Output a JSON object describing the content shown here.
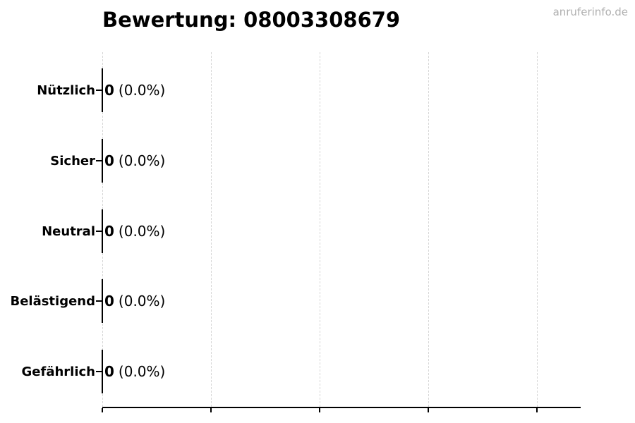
{
  "page": {
    "title": "Bewertung: 08003308679",
    "watermark": "anruferinfo.de"
  },
  "colors": {
    "background": "#ffffff",
    "text": "#000000",
    "gridline": "#d6d6d6",
    "axis": "#000000",
    "bar_edge": "#000000",
    "watermark": "#b0b0b0"
  },
  "chart_data": {
    "type": "bar",
    "orientation": "horizontal",
    "title": "Bewertung: 08003308679",
    "categories": [
      "Nützlich",
      "Sicher",
      "Neutral",
      "Belästigend",
      "Gefährlich"
    ],
    "values": [
      0,
      0,
      0,
      0,
      0
    ],
    "percent_labels": [
      "(0.0%)",
      "(0.0%)",
      "(0.0%)",
      "(0.0%)",
      "(0.0%)"
    ],
    "value_labels": [
      "0 (0.0%)",
      "0 (0.0%)",
      "0 (0.0%)",
      "0 (0.0%)",
      "0 (0.0%)"
    ],
    "xlabel": "",
    "ylabel": "",
    "x_tick_labels": [],
    "xlim": [
      0,
      4.4
    ],
    "grid": "vertical dashed gridlines at each x tick",
    "legend": "none"
  }
}
